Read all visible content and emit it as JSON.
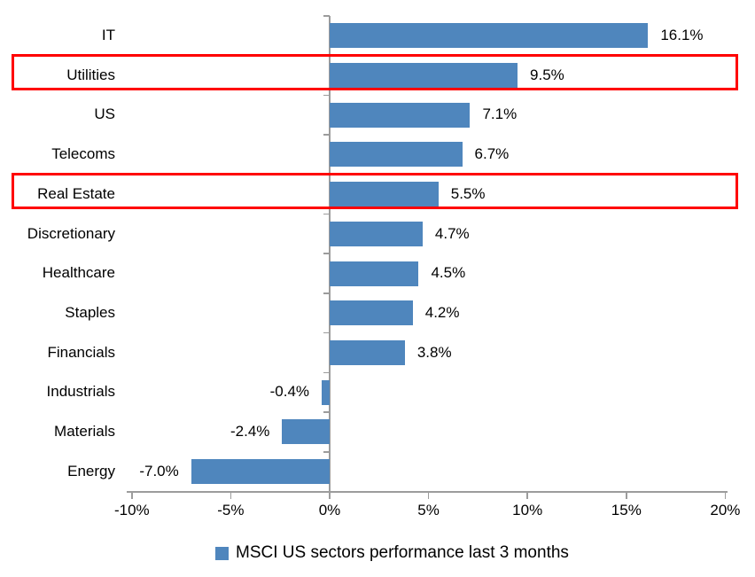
{
  "chart_data": {
    "type": "bar",
    "orientation": "horizontal",
    "title": "",
    "xlabel": "",
    "ylabel": "",
    "categories": [
      "IT",
      "Utilities",
      "US",
      "Telecoms",
      "Real Estate",
      "Discretionary",
      "Healthcare",
      "Staples",
      "Financials",
      "Industrials",
      "Materials",
      "Energy"
    ],
    "values": [
      16.1,
      9.5,
      7.1,
      6.7,
      5.5,
      4.7,
      4.5,
      4.2,
      3.8,
      -0.4,
      -2.4,
      -7.0
    ],
    "data_labels": [
      "16.1%",
      "9.5%",
      "7.1%",
      "6.7%",
      "5.5%",
      "4.7%",
      "4.5%",
      "4.2%",
      "3.8%",
      "-0.4%",
      "-2.4%",
      "-7.0%"
    ],
    "x_tick_labels": [
      "-10%",
      "-5%",
      "0%",
      "5%",
      "10%",
      "15%",
      "20%"
    ],
    "x_tick_values": [
      -10,
      -5,
      0,
      5,
      10,
      15,
      20
    ],
    "xlim": [
      -10,
      20
    ],
    "grid": "off",
    "legend_position": "bottom-center",
    "legend": [
      {
        "label": "MSCI US sectors performance last 3 months",
        "color": "#4F86BD"
      }
    ],
    "bar_color": "#4F86BD",
    "axis_color": "#9C9C9C",
    "highlight_color": "#FF0000",
    "highlighted_categories": [
      "Utilities",
      "Real Estate"
    ]
  }
}
